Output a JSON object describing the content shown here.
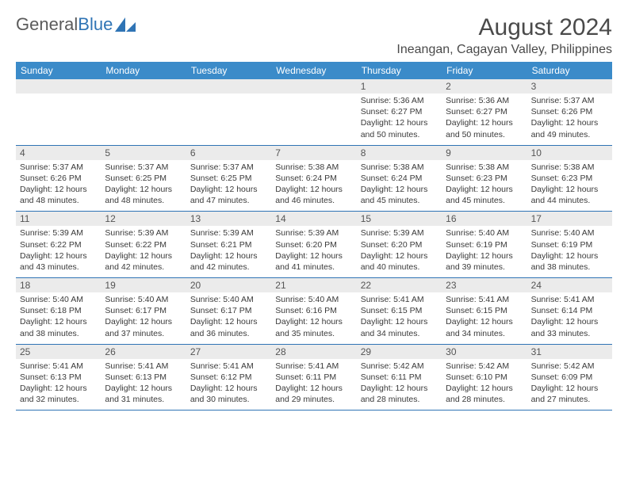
{
  "logo": {
    "text1": "General",
    "text2": "Blue"
  },
  "title": "August 2024",
  "location": "Ineangan, Cagayan Valley, Philippines",
  "colors": {
    "header_bg": "#3b8bc9",
    "header_text": "#ffffff",
    "daynum_bg": "#ebebeb",
    "border": "#2f74b5",
    "logo_gray": "#5b5b5b",
    "logo_blue": "#2f74b5"
  },
  "weekdays": [
    "Sunday",
    "Monday",
    "Tuesday",
    "Wednesday",
    "Thursday",
    "Friday",
    "Saturday"
  ],
  "weeks": [
    [
      {
        "n": "",
        "sr": "",
        "ss": "",
        "dl": ""
      },
      {
        "n": "",
        "sr": "",
        "ss": "",
        "dl": ""
      },
      {
        "n": "",
        "sr": "",
        "ss": "",
        "dl": ""
      },
      {
        "n": "",
        "sr": "",
        "ss": "",
        "dl": ""
      },
      {
        "n": "1",
        "sr": "Sunrise: 5:36 AM",
        "ss": "Sunset: 6:27 PM",
        "dl": "Daylight: 12 hours and 50 minutes."
      },
      {
        "n": "2",
        "sr": "Sunrise: 5:36 AM",
        "ss": "Sunset: 6:27 PM",
        "dl": "Daylight: 12 hours and 50 minutes."
      },
      {
        "n": "3",
        "sr": "Sunrise: 5:37 AM",
        "ss": "Sunset: 6:26 PM",
        "dl": "Daylight: 12 hours and 49 minutes."
      }
    ],
    [
      {
        "n": "4",
        "sr": "Sunrise: 5:37 AM",
        "ss": "Sunset: 6:26 PM",
        "dl": "Daylight: 12 hours and 48 minutes."
      },
      {
        "n": "5",
        "sr": "Sunrise: 5:37 AM",
        "ss": "Sunset: 6:25 PM",
        "dl": "Daylight: 12 hours and 48 minutes."
      },
      {
        "n": "6",
        "sr": "Sunrise: 5:37 AM",
        "ss": "Sunset: 6:25 PM",
        "dl": "Daylight: 12 hours and 47 minutes."
      },
      {
        "n": "7",
        "sr": "Sunrise: 5:38 AM",
        "ss": "Sunset: 6:24 PM",
        "dl": "Daylight: 12 hours and 46 minutes."
      },
      {
        "n": "8",
        "sr": "Sunrise: 5:38 AM",
        "ss": "Sunset: 6:24 PM",
        "dl": "Daylight: 12 hours and 45 minutes."
      },
      {
        "n": "9",
        "sr": "Sunrise: 5:38 AM",
        "ss": "Sunset: 6:23 PM",
        "dl": "Daylight: 12 hours and 45 minutes."
      },
      {
        "n": "10",
        "sr": "Sunrise: 5:38 AM",
        "ss": "Sunset: 6:23 PM",
        "dl": "Daylight: 12 hours and 44 minutes."
      }
    ],
    [
      {
        "n": "11",
        "sr": "Sunrise: 5:39 AM",
        "ss": "Sunset: 6:22 PM",
        "dl": "Daylight: 12 hours and 43 minutes."
      },
      {
        "n": "12",
        "sr": "Sunrise: 5:39 AM",
        "ss": "Sunset: 6:22 PM",
        "dl": "Daylight: 12 hours and 42 minutes."
      },
      {
        "n": "13",
        "sr": "Sunrise: 5:39 AM",
        "ss": "Sunset: 6:21 PM",
        "dl": "Daylight: 12 hours and 42 minutes."
      },
      {
        "n": "14",
        "sr": "Sunrise: 5:39 AM",
        "ss": "Sunset: 6:20 PM",
        "dl": "Daylight: 12 hours and 41 minutes."
      },
      {
        "n": "15",
        "sr": "Sunrise: 5:39 AM",
        "ss": "Sunset: 6:20 PM",
        "dl": "Daylight: 12 hours and 40 minutes."
      },
      {
        "n": "16",
        "sr": "Sunrise: 5:40 AM",
        "ss": "Sunset: 6:19 PM",
        "dl": "Daylight: 12 hours and 39 minutes."
      },
      {
        "n": "17",
        "sr": "Sunrise: 5:40 AM",
        "ss": "Sunset: 6:19 PM",
        "dl": "Daylight: 12 hours and 38 minutes."
      }
    ],
    [
      {
        "n": "18",
        "sr": "Sunrise: 5:40 AM",
        "ss": "Sunset: 6:18 PM",
        "dl": "Daylight: 12 hours and 38 minutes."
      },
      {
        "n": "19",
        "sr": "Sunrise: 5:40 AM",
        "ss": "Sunset: 6:17 PM",
        "dl": "Daylight: 12 hours and 37 minutes."
      },
      {
        "n": "20",
        "sr": "Sunrise: 5:40 AM",
        "ss": "Sunset: 6:17 PM",
        "dl": "Daylight: 12 hours and 36 minutes."
      },
      {
        "n": "21",
        "sr": "Sunrise: 5:40 AM",
        "ss": "Sunset: 6:16 PM",
        "dl": "Daylight: 12 hours and 35 minutes."
      },
      {
        "n": "22",
        "sr": "Sunrise: 5:41 AM",
        "ss": "Sunset: 6:15 PM",
        "dl": "Daylight: 12 hours and 34 minutes."
      },
      {
        "n": "23",
        "sr": "Sunrise: 5:41 AM",
        "ss": "Sunset: 6:15 PM",
        "dl": "Daylight: 12 hours and 34 minutes."
      },
      {
        "n": "24",
        "sr": "Sunrise: 5:41 AM",
        "ss": "Sunset: 6:14 PM",
        "dl": "Daylight: 12 hours and 33 minutes."
      }
    ],
    [
      {
        "n": "25",
        "sr": "Sunrise: 5:41 AM",
        "ss": "Sunset: 6:13 PM",
        "dl": "Daylight: 12 hours and 32 minutes."
      },
      {
        "n": "26",
        "sr": "Sunrise: 5:41 AM",
        "ss": "Sunset: 6:13 PM",
        "dl": "Daylight: 12 hours and 31 minutes."
      },
      {
        "n": "27",
        "sr": "Sunrise: 5:41 AM",
        "ss": "Sunset: 6:12 PM",
        "dl": "Daylight: 12 hours and 30 minutes."
      },
      {
        "n": "28",
        "sr": "Sunrise: 5:41 AM",
        "ss": "Sunset: 6:11 PM",
        "dl": "Daylight: 12 hours and 29 minutes."
      },
      {
        "n": "29",
        "sr": "Sunrise: 5:42 AM",
        "ss": "Sunset: 6:11 PM",
        "dl": "Daylight: 12 hours and 28 minutes."
      },
      {
        "n": "30",
        "sr": "Sunrise: 5:42 AM",
        "ss": "Sunset: 6:10 PM",
        "dl": "Daylight: 12 hours and 28 minutes."
      },
      {
        "n": "31",
        "sr": "Sunrise: 5:42 AM",
        "ss": "Sunset: 6:09 PM",
        "dl": "Daylight: 12 hours and 27 minutes."
      }
    ]
  ]
}
